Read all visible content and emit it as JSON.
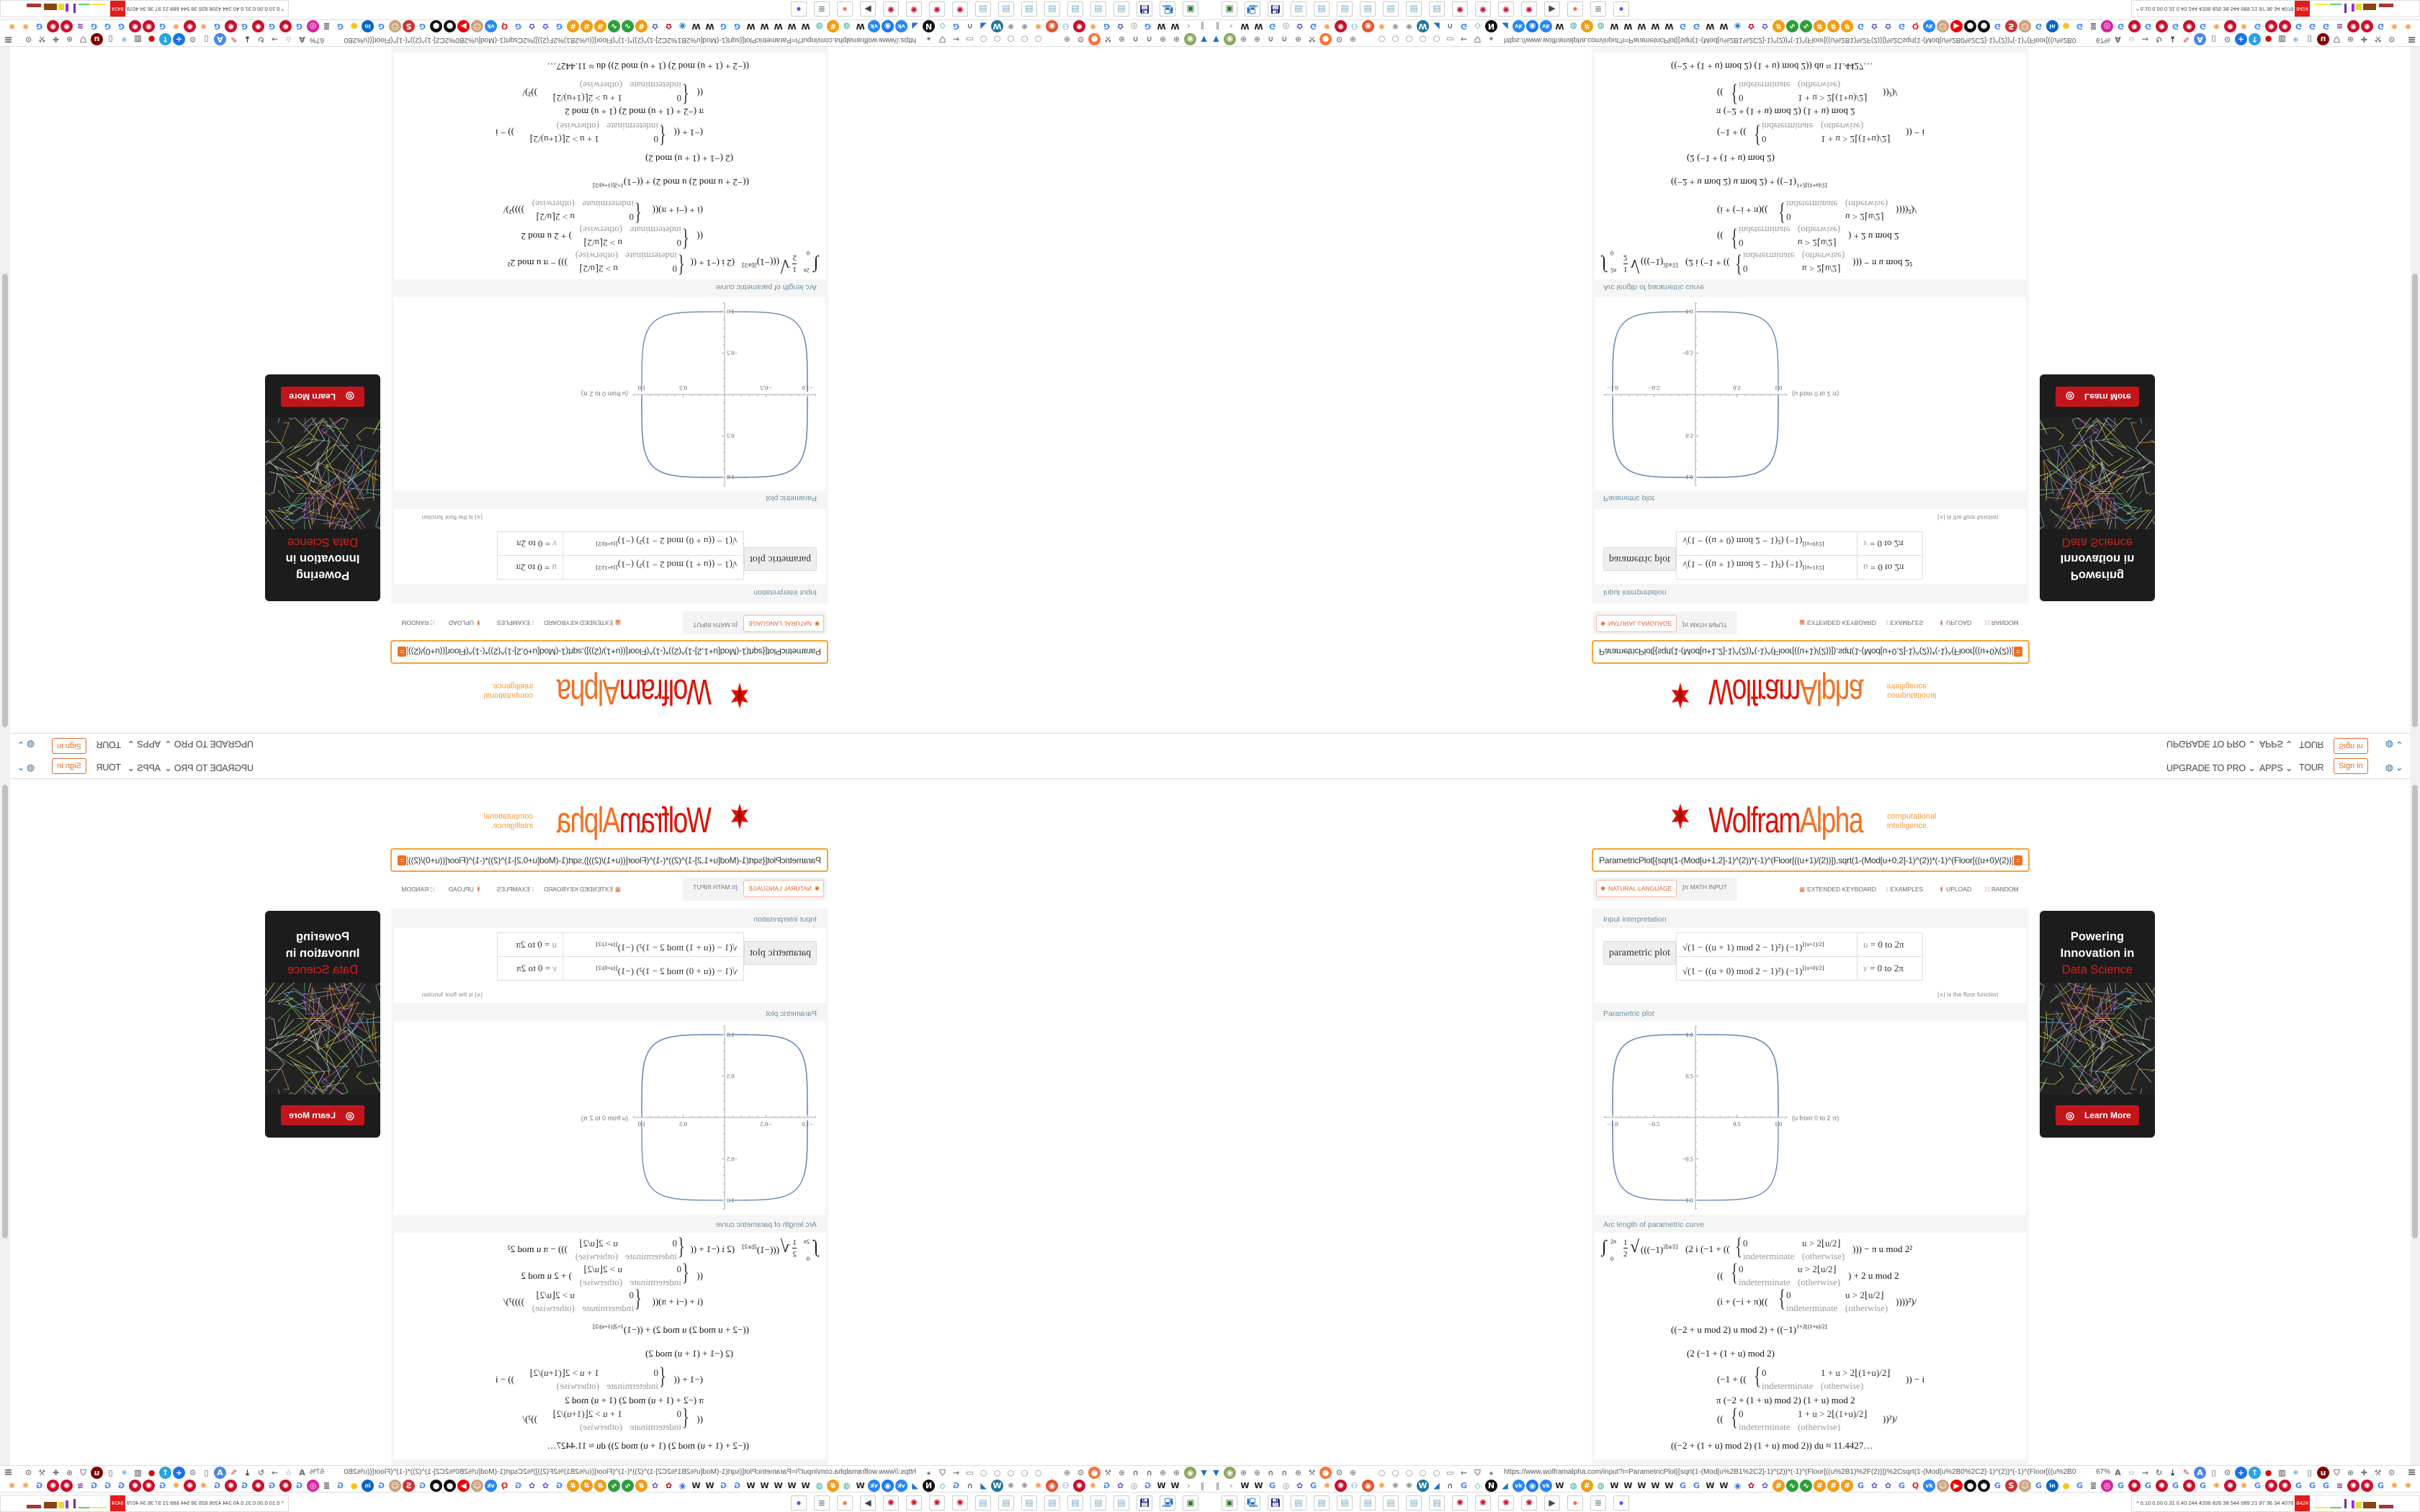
{
  "nav": {
    "upgrade": "UPGRADE TO PRO ⌄",
    "apps": "APPS ⌄",
    "tour": "TOUR",
    "sign_in": "Sign in",
    "globe": "◍ ⌄"
  },
  "logo": {
    "wolfram": "Wolfram",
    "alpha": "Alpha",
    "tagline1": "computational",
    "tagline2": "intelligence.",
    "red": "#dd1100",
    "orange": "#f26f21"
  },
  "search": {
    "value": "ParametricPlot[{sqrt(1-(Mod[u+1,2]-1)^(2))*(-1)^(Floor[((u+1)/(2))]),sqrt(1-(Mod[u+0,2]-1)^(2))*(-1)^(Floor[((u+0)/(2))])},{u,0,2pi}]",
    "go": "="
  },
  "modes": {
    "natural_language": "NATURAL LANGUAGE",
    "math_input": "MATH INPUT"
  },
  "tools": {
    "keyboard": "EXTENDED KEYBOARD",
    "examples": "EXAMPLES",
    "upload": "UPLOAD",
    "random": "RANDOM"
  },
  "pods": [
    {
      "title": "Input interpretation",
      "label": "parametric plot",
      "rows": [
        {
          "expr": "√(1 − ((u + 1) mod 2 − 1)²)  (−1)",
          "exp": "⌊(u+1)/2⌋",
          "var": "u",
          "range": " = 0 to 2π"
        },
        {
          "expr": "√(1 − ((u + 0) mod 2 − 1)²)  (−1)",
          "exp": "⌊(u+0)/2⌋",
          "var": "v",
          "range": " = 0 to 2π"
        }
      ],
      "note": "⌊x⌋ is the floor function"
    },
    {
      "title": "Parametric plot",
      "plot": {
        "x_ticks": [
          {
            "v": -1,
            "t": "−1.0"
          },
          {
            "v": -0.5,
            "t": "−0.5"
          },
          {
            "v": 0.5,
            "t": "0.5"
          },
          {
            "v": 1,
            "t": "1.0"
          }
        ],
        "y_ticks": [
          {
            "v": 1,
            "t": "1.0"
          },
          {
            "v": 0.5,
            "t": "0.5"
          },
          {
            "v": -0.5,
            "t": "−0.5"
          },
          {
            "v": -1,
            "t": "−1.0"
          }
        ],
        "label": "(u from 0 to 2 π)",
        "curve_color": "#5e81b5"
      }
    },
    {
      "title": "Arc length of parametric curve",
      "f": {
        "int": "∫",
        "up": "2π",
        "lo": "0",
        "half_n": "1",
        "half_d": "2",
        "sqrt": "√",
        "l1a": "(((−1)",
        "l1a_sup": "2⌊u/2⌋",
        "l1b": "(2 i (−1 + ((",
        "l1c": "))) − π u mod 2²",
        "l2a": "((",
        "l2b": ") + 2 u mod 2",
        "l3a": "(i + (−i + π)((",
        "l3b": "))))²)/",
        "l4": "((−2 + u mod 2) u mod 2) + ((−1)",
        "l4_sup": "1+2⌊(1+u)/2⌋",
        "l5": "(2 (−1 + (1 + u) mod 2)",
        "l6a": "(−1 + ((",
        "l6b": ")) − i",
        "l7": "π (−2 + (1 + u) mod 2) (1 + u) mod 2",
        "l8a": "((",
        "l8b": "))²)/",
        "l9": "((−2 + (1 + u) mod 2) (1 + u) mod 2)) du ≈ 11.4427…",
        "zero": "0",
        "indet": "indeterminate",
        "other": "(otherwise)",
        "cond_u": "u > 2⌊u/2⌋",
        "cond_1u": "1 + u > 2⌊(1+u)/2⌋"
      }
    }
  ],
  "ad": {
    "line1": "Powering",
    "line2": "Innovation in",
    "line3": "Data Science",
    "button": "Learn More"
  },
  "browser": {
    "url": "https://www.wolframalpha.com/input?i=ParametricPlot[{sqrt(1-(Mod[u%2B1%2C2]-1)^(2))*(-1)^(Floor[((u%2B1)%2F(2))])%2Csqrt(1-(Mod[u%2B0%2C2]-1)^(2))*(-1)^(Floor[((u%2B0",
    "zoom": "67%",
    "status": {
      "numbers": "^  0.10 0.00 0.31 0.40 244 4206 826 38 544 689 21 97 36 34 4078",
      "alert": "8424"
    }
  },
  "icon_styles": {
    "google": {
      "g": "G",
      "c": "#4285f4"
    },
    "wikipedia": {
      "g": "W",
      "c": "#222"
    },
    "wolfram-red": {
      "g": "✺",
      "bg": "#c8102e"
    },
    "wolfram-orange": {
      "g": "✺",
      "c": "#f0a050"
    },
    "gray-gear": {
      "g": "✺",
      "c": "#999"
    },
    "vk": {
      "g": "vk",
      "bg": "#2787f5"
    },
    "youtube": {
      "g": "▶",
      "bg": "#ee0000"
    },
    "linkedin": {
      "g": "in",
      "bg": "#0a66c2"
    },
    "instagram": {
      "g": "◎",
      "bg": "#d6249f"
    },
    "wordpress": {
      "g": "W",
      "bg": "#21759b"
    },
    "globe": {
      "g": "◍",
      "c": "#2a9d9d"
    },
    "purple-flower": {
      "g": "✿",
      "c": "#6a5acd"
    },
    "red-flower": {
      "g": "✿",
      "c": "#c0102a"
    },
    "orange-hash": {
      "g": "#",
      "bg": "#f39c12"
    },
    "green-wave": {
      "g": "∿",
      "bg": "#2e9e3a"
    },
    "black-dots": {
      "g": "●",
      "bg": "#111"
    },
    "nbc": {
      "g": "N",
      "bg": "#111"
    },
    "chat": {
      "g": "◉",
      "bg": "#1877f2"
    },
    "blue-wave": {
      "g": "◢",
      "c": "#1c6dd0"
    },
    "people": {
      "g": "⚇",
      "c": "#2b6cd6"
    },
    "radio": {
      "g": "◉",
      "bg": "#e2532d"
    },
    "headphones": {
      "g": "∩",
      "c": "#777"
    },
    "diamond": {
      "g": "◇",
      "c": "#19a0b0"
    },
    "q-red": {
      "g": "Q",
      "c": "#dd2222"
    },
    "face": {
      "g": "☺",
      "bg": "#c9a27a"
    },
    "sr-red": {
      "g": "S",
      "bg": "#cc3333"
    },
    "yellow-blob": {
      "g": "●",
      "c": "#f5c518"
    },
    "document": {
      "g": "≣",
      "c": "#444"
    },
    "stripes": {
      "g": "≋",
      "c": "#7030a0"
    },
    "play-ring": {
      "g": "◉",
      "c": "#3a7bd5"
    },
    "gray-ring": {
      "g": "◎",
      "c": "#888"
    },
    "funnel": {
      "g": "▼",
      "c": "#1a73c8"
    },
    "green-circle": {
      "g": "◉",
      "bg": "#8aa860"
    },
    "globe-outline": {
      "g": "⊕",
      "c": "#888"
    },
    "wrench": {
      "g": "⚒",
      "c": "#777"
    },
    "firefox": {
      "g": "●",
      "bg": "#ff7139"
    },
    "gear": {
      "g": "⚙",
      "c": "#777"
    },
    "dot": {
      "g": "○",
      "c": "#888"
    },
    "folder": {
      "g": "▭",
      "c": "#777"
    },
    "back": {
      "g": "←",
      "c": "#777"
    },
    "shield": {
      "g": "⛉",
      "c": "#777"
    },
    "lock": {
      "g": "🔒︎",
      "c": "#777"
    },
    "translate": {
      "g": "A",
      "c": "#666"
    },
    "star": {
      "g": "☆",
      "c": "#777"
    },
    "forward": {
      "g": "→",
      "c": "#777"
    },
    "reload": {
      "g": "↻",
      "c": "#777"
    },
    "download": {
      "g": "⤓",
      "c": "#333"
    },
    "pencil": {
      "g": "✎",
      "c": "#c33"
    },
    "translate-blue": {
      "g": "A",
      "bg": "#4a86e8"
    },
    "mouse": {
      "g": "▯",
      "c": "#555"
    },
    "plus": {
      "g": "+",
      "bg": "#1a73e8"
    },
    "upload-blue": {
      "g": "↑",
      "bg": "#29a3e0"
    },
    "red-circle": {
      "g": "●",
      "c": "#d01010"
    },
    "trash": {
      "g": "▥",
      "c": "#333"
    },
    "network": {
      "g": "✳",
      "c": "#3a8fd0"
    },
    "jar": {
      "g": "▯",
      "c": "#444"
    },
    "ublock": {
      "g": "u",
      "bg": "#800000"
    },
    "puzzle": {
      "g": "✚",
      "c": "#777"
    },
    "menu": {
      "g": "≡",
      "c": "#555"
    },
    "pause": {
      "g": "‖",
      "c": "#999"
    },
    "chevron-left": {
      "g": "‹",
      "c": "#999"
    },
    "chevron-right": {
      "g": "›",
      "c": "#999"
    },
    "chevron-up": {
      "g": "^",
      "c": "#555"
    }
  },
  "toolbar_left": [
    "funnel",
    "green-circle",
    "globe-outline",
    "globe-outline",
    "headphones",
    "headphones",
    "globe-outline",
    "wrench",
    "firefox",
    "gear",
    "globe-outline"
  ],
  "toolbar_mid": [
    "dot",
    "dot",
    "dot",
    "dot",
    "dot",
    "folder",
    "back",
    "shield",
    "lock"
  ],
  "toolbar_right": [
    "translate",
    "star",
    "forward",
    "reload",
    "download",
    "pencil",
    "translate-blue",
    "mouse",
    "gear",
    "plus",
    "upload-blue",
    "red-circle",
    "trash",
    "network",
    "jar",
    "ublock",
    "shield",
    "globe-outline",
    "puzzle",
    "wrench",
    "gear"
  ],
  "bookmarks": [
    "pause",
    "chevron-left",
    "wikipedia",
    "wikipedia",
    "google",
    "gray-ring",
    "purple-flower",
    "google",
    "wolfram-orange",
    "wolfram-red",
    "people",
    "radio",
    "wolfram-orange",
    "gray-gear",
    "gray-gear",
    "wordpress",
    "blue-wave",
    "headphones",
    "google",
    "diamond",
    "nbc",
    "blue-wave",
    "vk",
    "chat",
    "vk",
    "wikipedia",
    "globe",
    "orange-hash",
    "globe",
    "wikipedia",
    "wikipedia",
    "wikipedia",
    "wikipedia",
    "wikipedia",
    "google",
    "google",
    "wikipedia",
    "wikipedia",
    "play-ring",
    "red-flower",
    "purple-flower",
    "orange-hash",
    "green-wave",
    "green-wave",
    "orange-hash",
    "orange-hash",
    "orange-hash",
    "google",
    "purple-flower",
    "purple-flower",
    "google",
    "q-red",
    "vk",
    "face",
    "youtube",
    "black-dots",
    "black-dots",
    "google",
    "sr-red",
    "face",
    "google",
    "linkedin",
    "yellow-blob",
    "google",
    "document",
    "instagram",
    "google",
    "wolfram-red",
    "google",
    "wolfram-red",
    "google",
    "wolfram-red",
    "google",
    "wolfram-orange",
    "wolfram-red",
    "wolfram-orange",
    "google",
    "wolfram-red",
    "wolfram-red",
    "google",
    "google",
    "google",
    "stripes",
    "wolfram-red",
    "wolfram-red",
    "google",
    "wolfram-orange",
    "wolfram-orange",
    "chevron-right",
    "chevron-up"
  ],
  "taskbar": [
    {
      "name": "terminal",
      "g": "▣",
      "c": "#2e7d32"
    },
    {
      "name": "computer",
      "g": "🖳︎",
      "c": "#1565c0"
    },
    {
      "name": "floppy-64",
      "g": "💾︎",
      "c": "#1a237e"
    },
    {
      "name": "notepad",
      "g": "▤",
      "c": "#6fa8c8"
    },
    {
      "name": "notepad",
      "g": "▤",
      "c": "#6fa8c8"
    },
    {
      "name": "notepad",
      "g": "▤",
      "c": "#6fa8c8"
    },
    {
      "name": "notepad",
      "g": "▤",
      "c": "#6fa8c8"
    },
    {
      "name": "notepad",
      "g": "▤",
      "c": "#6fa8c8"
    },
    {
      "name": "notepad",
      "g": "▤",
      "c": "#6fa8c8"
    },
    {
      "name": "notepad",
      "g": "▤",
      "c": "#6fa8c8"
    },
    {
      "name": "wolfram",
      "g": "✺",
      "c": "#d0112b"
    },
    {
      "name": "wolfram",
      "g": "✺",
      "c": "#d0112b"
    },
    {
      "name": "wolfram",
      "g": "✺",
      "c": "#d0112b"
    },
    {
      "name": "wolfram",
      "g": "✺",
      "c": "#d0112b"
    },
    {
      "name": "media",
      "g": "▶",
      "c": "#37474f"
    },
    {
      "name": "firefox",
      "g": "●",
      "c": "#ff7139"
    },
    {
      "name": "scroll",
      "g": "≣",
      "c": "#607d8b"
    },
    {
      "name": "purple-app",
      "g": "●",
      "c": "#7e3ff2"
    }
  ]
}
